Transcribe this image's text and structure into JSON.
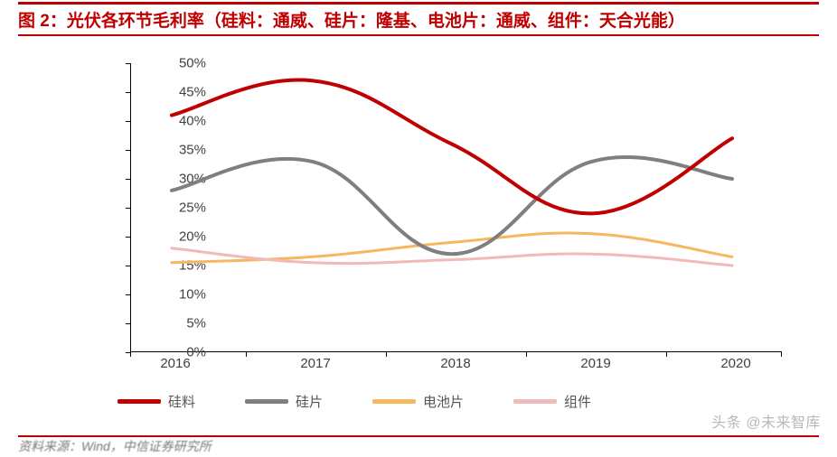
{
  "title": {
    "prefix": "图 2：",
    "text": "光伏各环节毛利率（硅料：通威、硅片：隆基、电池片：通威、组件：天合光能）",
    "color": "#c00000",
    "fontsize": 19,
    "fontweight": 700
  },
  "rules": {
    "top_color": "#c00000",
    "bottom_color": "#c00000",
    "footer_color": "#c00000"
  },
  "chart": {
    "type": "line",
    "background_color": "#ffffff",
    "axis_color": "#000000",
    "label_color": "#404040",
    "label_fontsize": 15,
    "x": {
      "categories": [
        "2016",
        "2017",
        "2018",
        "2019",
        "2020"
      ],
      "tick_half": true
    },
    "y": {
      "min": 0,
      "max": 50,
      "step": 5,
      "suffix": "%"
    },
    "line_width_main": 4,
    "line_width_thin": 3,
    "series": [
      {
        "name": "硅料",
        "color": "#c00000",
        "width": 4,
        "values": [
          41,
          47,
          36,
          24,
          37
        ]
      },
      {
        "name": "硅片",
        "color": "#7f7f7f",
        "width": 4,
        "values": [
          28,
          33,
          17,
          33,
          30
        ]
      },
      {
        "name": "电池片",
        "color": "#f6b75f",
        "width": 3,
        "values": [
          15.5,
          16.5,
          19,
          20.5,
          16.5
        ]
      },
      {
        "name": "组件",
        "color": "#f2b9bb",
        "width": 3,
        "values": [
          18,
          15.5,
          16,
          17,
          15
        ]
      }
    ]
  },
  "legend": {
    "items": [
      {
        "label": "硅料",
        "color": "#c00000"
      },
      {
        "label": "硅片",
        "color": "#7f7f7f"
      },
      {
        "label": "电池片",
        "color": "#f6b75f"
      },
      {
        "label": "组件",
        "color": "#f2b9bb"
      }
    ],
    "swatch_width": 48,
    "swatch_height": 5,
    "fontsize": 15,
    "color": "#555555"
  },
  "watermark": {
    "text": "头条 @未来智库",
    "color": "#b8b8b8",
    "fontsize": 16
  },
  "footer": {
    "text": "资料来源：Wind，中信证券研究所",
    "color": "#7a7a7a",
    "fontsize": 14
  }
}
